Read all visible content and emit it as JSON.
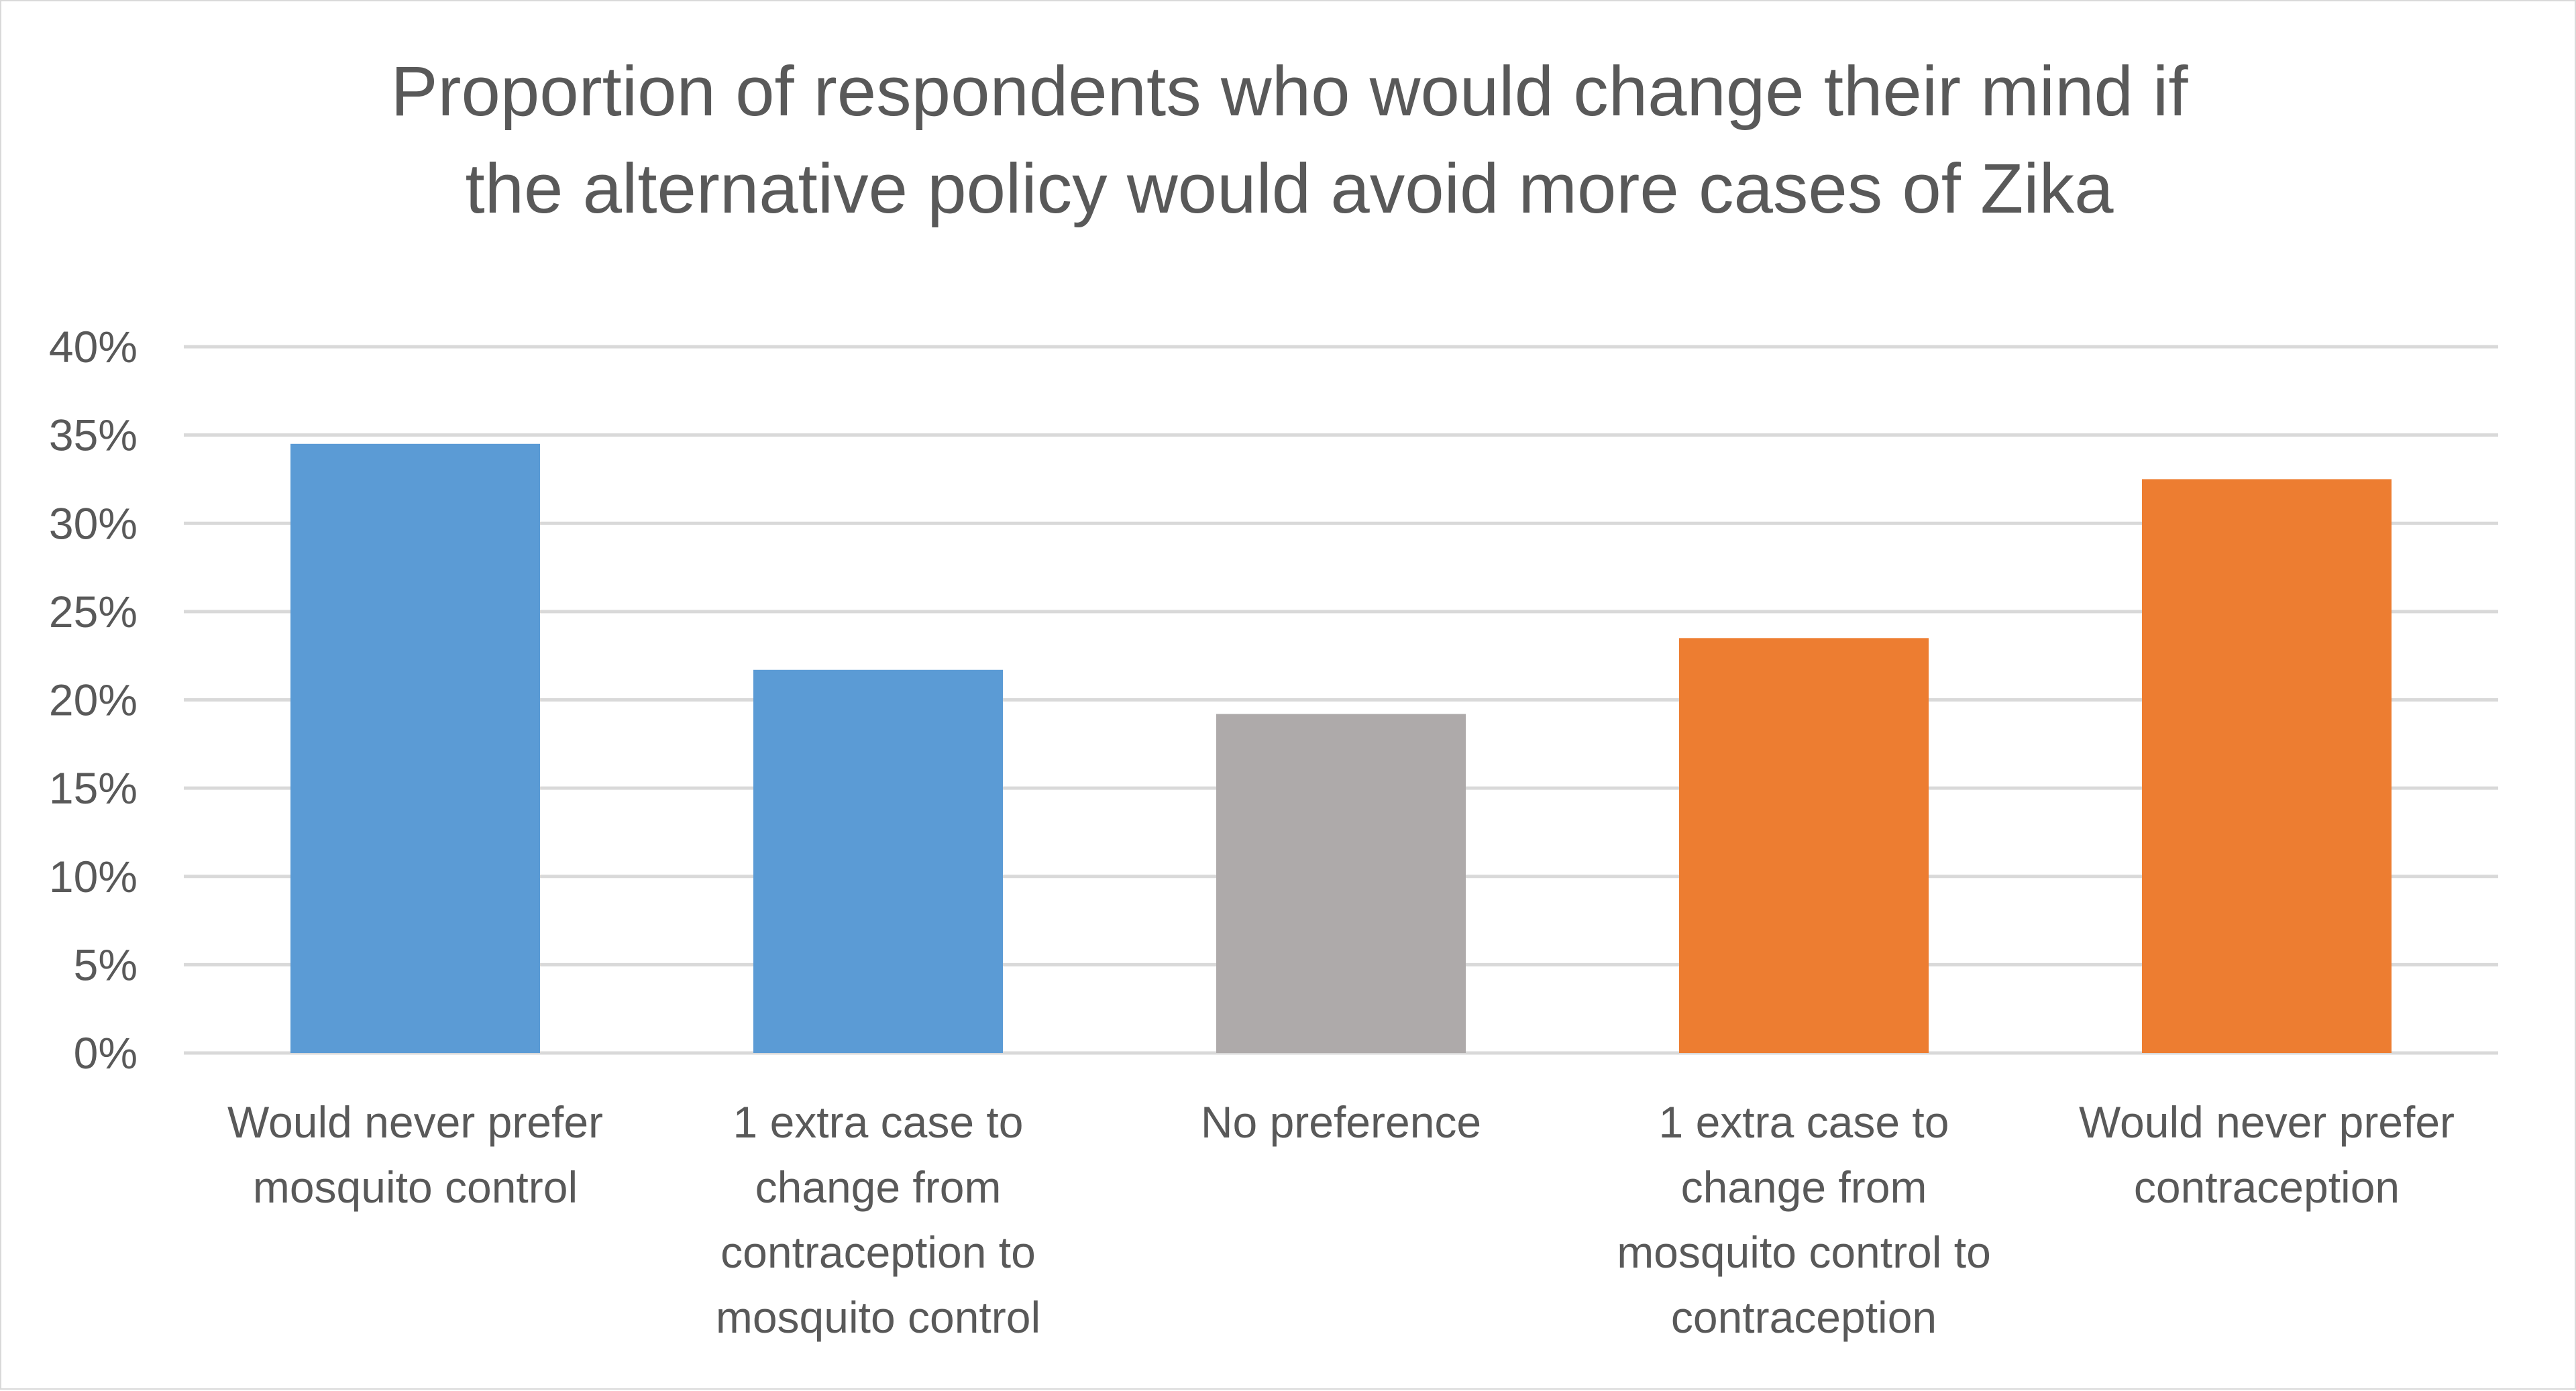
{
  "chart_data": {
    "type": "bar",
    "title": "Proportion of respondents who would change their mind if the alternative policy would avoid more cases of Zika",
    "title_lines": [
      "Proportion of respondents who would change their mind if",
      "the alternative policy would avoid more cases of Zika"
    ],
    "xlabel": "",
    "ylabel": "",
    "ylim": [
      0,
      0.4
    ],
    "y_ticks": [
      0,
      0.05,
      0.1,
      0.15,
      0.2,
      0.25,
      0.3,
      0.35,
      0.4
    ],
    "y_tick_labels": [
      "0%",
      "5%",
      "10%",
      "15%",
      "20%",
      "25%",
      "30%",
      "35%",
      "40%"
    ],
    "grid": true,
    "legend": "none",
    "categories": [
      "Would never prefer mosquito control",
      "1 extra case to change from contraception to mosquito control",
      "No preference",
      "1 extra case to change from mosquito control to contraception",
      "Would never prefer contraception"
    ],
    "category_label_lines": [
      [
        "Would never prefer",
        "mosquito control"
      ],
      [
        "1 extra case to",
        "change from",
        "contraception to",
        "mosquito control"
      ],
      [
        "No preference"
      ],
      [
        "1 extra case to",
        "change from",
        "mosquito control to",
        "contraception"
      ],
      [
        "Would never prefer",
        "contraception"
      ]
    ],
    "values": [
      0.345,
      0.217,
      0.192,
      0.235,
      0.325
    ],
    "bar_colors": [
      "#5B9BD5",
      "#5B9BD5",
      "#AEAAAA",
      "#ED7D31",
      "#ED7D31"
    ]
  },
  "colors": {
    "text": "#595959",
    "grid": "#d9d9d9",
    "border": "#d9d9d9",
    "background": "#ffffff"
  }
}
